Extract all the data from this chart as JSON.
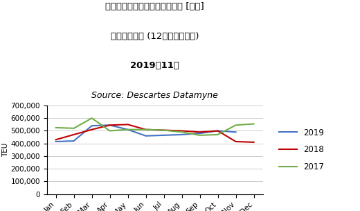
{
  "title_line1": "米国発アジア向けコンテナ輸送 [復航]",
  "title_line2": "月次トレンド (12ヶ月・３年間)",
  "title_line3": "2019年11月",
  "title_line4": "Source: Descartes Datamyne",
  "months": [
    "Jan",
    "Feb",
    "Mar",
    "Apr",
    "May",
    "Jun",
    "Jul",
    "Aug",
    "Sep",
    "Oct",
    "Nov",
    "Dec"
  ],
  "series": {
    "2019": [
      415000,
      420000,
      540000,
      545000,
      510000,
      460000,
      465000,
      470000,
      480000,
      500000,
      490000,
      null
    ],
    "2018": [
      430000,
      470000,
      510000,
      545000,
      550000,
      510000,
      505000,
      500000,
      490000,
      500000,
      415000,
      410000
    ],
    "2017": [
      525000,
      520000,
      600000,
      500000,
      510000,
      510000,
      505000,
      490000,
      465000,
      470000,
      545000,
      555000
    ]
  },
  "colors": {
    "2019": "#4472C4",
    "2018": "#C00000",
    "2017": "#70AD47"
  },
  "ylabel": "TEU",
  "ylim": [
    0,
    700000
  ],
  "yticks": [
    0,
    100000,
    200000,
    300000,
    400000,
    500000,
    600000,
    700000
  ],
  "ytick_labels": [
    "0",
    "100,000",
    "200,000",
    "300,000",
    "400,000",
    "500,000",
    "600,000",
    "700,000"
  ],
  "legend_labels": [
    "2019",
    "2018",
    "2017"
  ],
  "background_color": "#ffffff",
  "line_width": 1.5,
  "title_fontsize": 9.5,
  "source_fontsize": 9,
  "axis_fontsize": 7.5,
  "legend_fontsize": 8.5
}
